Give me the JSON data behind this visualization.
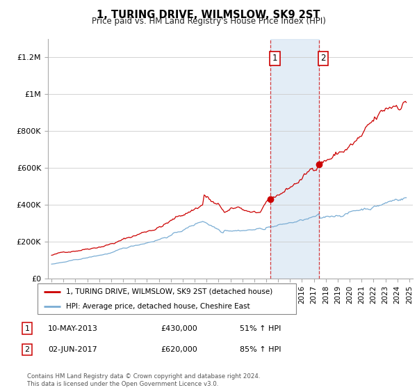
{
  "title": "1, TURING DRIVE, WILMSLOW, SK9 2ST",
  "subtitle": "Price paid vs. HM Land Registry's House Price Index (HPI)",
  "legend_line1": "1, TURING DRIVE, WILMSLOW, SK9 2ST (detached house)",
  "legend_line2": "HPI: Average price, detached house, Cheshire East",
  "sale1_date_str": "10-MAY-2013",
  "sale1_price_str": "£430,000",
  "sale1_hpi_str": "51% ↑ HPI",
  "sale1_year": 2013.37,
  "sale1_value": 430000,
  "sale2_date_str": "02-JUN-2017",
  "sale2_price_str": "£620,000",
  "sale2_hpi_str": "85% ↑ HPI",
  "sale2_year": 2017.42,
  "sale2_value": 620000,
  "red_line_color": "#cc0000",
  "blue_line_color": "#7aadd4",
  "shade_color": "#ccdff0",
  "shade_alpha": 0.55,
  "footer": "Contains HM Land Registry data © Crown copyright and database right 2024.\nThis data is licensed under the Open Government Licence v3.0.",
  "ylim": [
    0,
    1300000
  ],
  "yticks": [
    0,
    200000,
    400000,
    600000,
    800000,
    1000000,
    1200000
  ],
  "ytick_labels": [
    "£0",
    "£200K",
    "£400K",
    "£600K",
    "£800K",
    "£1M",
    "£1.2M"
  ],
  "xmin": 1994.7,
  "xmax": 2025.3
}
